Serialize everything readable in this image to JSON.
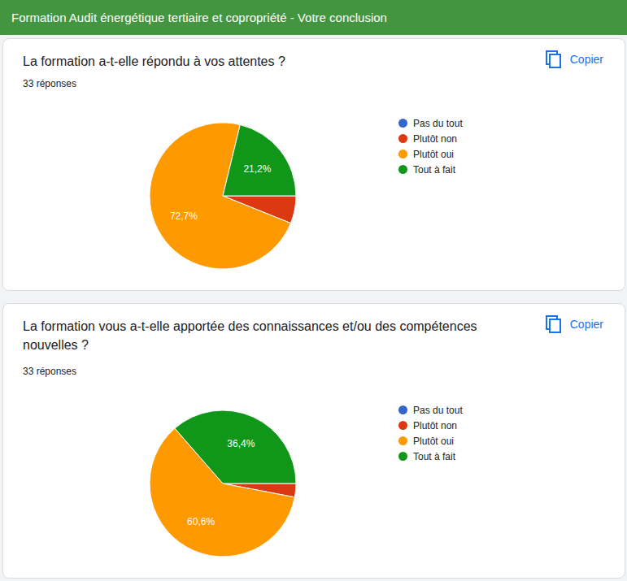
{
  "header": {
    "title": "Formation Audit énergétique tertiaire et copropriété - Votre conclusion"
  },
  "chart_data": [
    {
      "type": "pie",
      "title": "La formation a-t-elle répondu à vos attentes ?",
      "subtitle": "33 réponses",
      "annotations": [
        "Copier"
      ],
      "categories": [
        "Pas du tout",
        "Plutôt non",
        "Plutôt oui",
        "Tout à fait"
      ],
      "values": [
        0,
        6.1,
        72.7,
        21.2
      ],
      "colors": [
        "#3366cc",
        "#dc3912",
        "#ff9900",
        "#109618"
      ],
      "data_labels": true,
      "value_labels": [
        null,
        null,
        "72,7%",
        "21,2%"
      ],
      "legend": "right"
    },
    {
      "type": "pie",
      "title": "La formation vous a-t-elle apportée des connaissances et/ou des compétences nouvelles ?",
      "subtitle": "33 réponses",
      "annotations": [
        "Copier"
      ],
      "categories": [
        "Pas du tout",
        "Plutôt non",
        "Plutôt oui",
        "Tout à fait"
      ],
      "values": [
        0,
        3.0,
        60.6,
        36.4
      ],
      "colors": [
        "#3366cc",
        "#dc3912",
        "#ff9900",
        "#109618"
      ],
      "data_labels": true,
      "value_labels": [
        null,
        null,
        "60,6%",
        "36,4%"
      ],
      "legend": "right"
    }
  ]
}
